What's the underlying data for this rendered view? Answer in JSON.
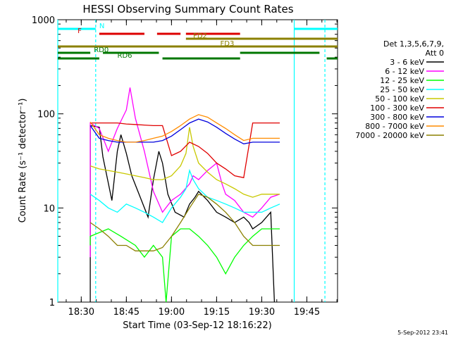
{
  "chart_data": {
    "type": "line",
    "title": "HESSI Observing Summary Count Rates",
    "xlabel": "Start Time (03-Sep-12 18:16:22)",
    "ylabel": "Count Rate (s⁻¹ detector⁻¹)",
    "yscale": "log",
    "ylim": [
      1,
      1000
    ],
    "xlim_minutes": [
      18.37,
      19.92
    ],
    "x_ticks": [
      "18:30",
      "18:45",
      "19:00",
      "19:15",
      "19:30",
      "19:45"
    ],
    "y_ticks": [
      "1",
      "10",
      "100",
      "1000"
    ],
    "footer_date": "5-Sep-2012 23:41",
    "legend": {
      "header": [
        "Det 1,3,5,6,7,9,",
        "Att 0"
      ],
      "placement": "right"
    },
    "series": [
      {
        "name": "3 - 6 keV",
        "color": "#000000",
        "points": [
          [
            18.55,
            1
          ],
          [
            18.55,
            75
          ],
          [
            18.6,
            72
          ],
          [
            18.62,
            35
          ],
          [
            18.67,
            12
          ],
          [
            18.7,
            40
          ],
          [
            18.72,
            60
          ],
          [
            18.75,
            38
          ],
          [
            18.78,
            22
          ],
          [
            18.82,
            14
          ],
          [
            18.87,
            8
          ],
          [
            18.9,
            20
          ],
          [
            18.93,
            40
          ],
          [
            18.95,
            30
          ],
          [
            18.98,
            14
          ],
          [
            19.02,
            9
          ],
          [
            19.07,
            8
          ],
          [
            19.1,
            11
          ],
          [
            19.13,
            13
          ],
          [
            19.15,
            15
          ],
          [
            19.2,
            12
          ],
          [
            19.25,
            9
          ],
          [
            19.3,
            8
          ],
          [
            19.35,
            7
          ],
          [
            19.4,
            8
          ],
          [
            19.43,
            7
          ],
          [
            19.45,
            6
          ],
          [
            19.5,
            7
          ],
          [
            19.55,
            9
          ],
          [
            19.57,
            1
          ]
        ]
      },
      {
        "name": "6 - 12 keV",
        "color": "#ff00ff",
        "points": [
          [
            18.55,
            3
          ],
          [
            18.55,
            80
          ],
          [
            18.6,
            70
          ],
          [
            18.65,
            40
          ],
          [
            18.7,
            70
          ],
          [
            18.75,
            110
          ],
          [
            18.77,
            190
          ],
          [
            18.8,
            90
          ],
          [
            18.85,
            40
          ],
          [
            18.9,
            15
          ],
          [
            18.95,
            9
          ],
          [
            19.0,
            12
          ],
          [
            19.05,
            14
          ],
          [
            19.1,
            18
          ],
          [
            19.12,
            22
          ],
          [
            19.15,
            20
          ],
          [
            19.2,
            25
          ],
          [
            19.25,
            30
          ],
          [
            19.28,
            18
          ],
          [
            19.3,
            14
          ],
          [
            19.35,
            12
          ],
          [
            19.4,
            9
          ],
          [
            19.45,
            8
          ],
          [
            19.5,
            10
          ],
          [
            19.55,
            13
          ],
          [
            19.6,
            14
          ]
        ]
      },
      {
        "name": "12 - 25 keV",
        "color": "#00ff00",
        "points": [
          [
            18.55,
            4
          ],
          [
            18.55,
            5
          ],
          [
            18.65,
            6
          ],
          [
            18.72,
            5
          ],
          [
            18.8,
            4
          ],
          [
            18.85,
            3
          ],
          [
            18.9,
            4
          ],
          [
            18.95,
            3
          ],
          [
            18.97,
            1
          ],
          [
            19.0,
            5
          ],
          [
            19.05,
            6
          ],
          [
            19.1,
            6
          ],
          [
            19.15,
            5
          ],
          [
            19.2,
            4
          ],
          [
            19.25,
            3
          ],
          [
            19.3,
            2
          ],
          [
            19.35,
            3
          ],
          [
            19.4,
            4
          ],
          [
            19.45,
            5
          ],
          [
            19.5,
            6
          ],
          [
            19.55,
            6
          ],
          [
            19.6,
            6
          ]
        ]
      },
      {
        "name": "25 - 50 keV",
        "color": "#00ffff",
        "points": [
          [
            18.55,
            14
          ],
          [
            18.6,
            12
          ],
          [
            18.65,
            10
          ],
          [
            18.7,
            9
          ],
          [
            18.75,
            11
          ],
          [
            18.8,
            10
          ],
          [
            18.85,
            9
          ],
          [
            18.9,
            8
          ],
          [
            18.95,
            7
          ],
          [
            19.0,
            10
          ],
          [
            19.05,
            13
          ],
          [
            19.08,
            16
          ],
          [
            19.1,
            25
          ],
          [
            19.12,
            20
          ],
          [
            19.15,
            16
          ],
          [
            19.2,
            13
          ],
          [
            19.25,
            12
          ],
          [
            19.3,
            11
          ],
          [
            19.35,
            10
          ],
          [
            19.4,
            9
          ],
          [
            19.45,
            9
          ],
          [
            19.5,
            9
          ],
          [
            19.55,
            10
          ],
          [
            19.6,
            11
          ]
        ]
      },
      {
        "name": "50 - 100 keV",
        "color": "#c8c800",
        "points": [
          [
            18.55,
            28
          ],
          [
            18.6,
            26
          ],
          [
            18.65,
            25
          ],
          [
            18.7,
            24
          ],
          [
            18.75,
            23
          ],
          [
            18.8,
            22
          ],
          [
            18.85,
            21
          ],
          [
            18.9,
            20
          ],
          [
            18.95,
            20
          ],
          [
            19.0,
            22
          ],
          [
            19.05,
            28
          ],
          [
            19.08,
            38
          ],
          [
            19.1,
            72
          ],
          [
            19.12,
            45
          ],
          [
            19.15,
            30
          ],
          [
            19.2,
            24
          ],
          [
            19.25,
            20
          ],
          [
            19.3,
            18
          ],
          [
            19.35,
            16
          ],
          [
            19.4,
            14
          ],
          [
            19.45,
            13
          ],
          [
            19.5,
            14
          ],
          [
            19.55,
            14
          ],
          [
            19.6,
            14
          ]
        ]
      },
      {
        "name": "100 - 300 keV",
        "color": "#e00000",
        "points": [
          [
            18.55,
            80
          ],
          [
            18.6,
            80
          ],
          [
            18.65,
            80
          ],
          [
            18.7,
            80
          ],
          [
            18.75,
            78
          ],
          [
            18.8,
            77
          ],
          [
            18.85,
            76
          ],
          [
            18.9,
            75
          ],
          [
            18.95,
            75
          ],
          [
            19.0,
            36
          ],
          [
            19.05,
            40
          ],
          [
            19.1,
            50
          ],
          [
            19.15,
            45
          ],
          [
            19.2,
            38
          ],
          [
            19.25,
            30
          ],
          [
            19.3,
            26
          ],
          [
            19.35,
            22
          ],
          [
            19.4,
            21
          ],
          [
            19.45,
            80
          ],
          [
            19.5,
            80
          ],
          [
            19.55,
            80
          ],
          [
            19.6,
            80
          ]
        ]
      },
      {
        "name": "300 - 800 keV",
        "color": "#0000dd",
        "points": [
          [
            18.55,
            75
          ],
          [
            18.6,
            55
          ],
          [
            18.65,
            52
          ],
          [
            18.7,
            50
          ],
          [
            18.75,
            50
          ],
          [
            18.8,
            50
          ],
          [
            18.85,
            50
          ],
          [
            18.9,
            50
          ],
          [
            18.95,
            52
          ],
          [
            19.0,
            58
          ],
          [
            19.05,
            68
          ],
          [
            19.1,
            80
          ],
          [
            19.15,
            88
          ],
          [
            19.2,
            82
          ],
          [
            19.25,
            72
          ],
          [
            19.3,
            62
          ],
          [
            19.35,
            54
          ],
          [
            19.4,
            48
          ],
          [
            19.45,
            50
          ],
          [
            19.5,
            50
          ],
          [
            19.55,
            50
          ],
          [
            19.6,
            50
          ]
        ]
      },
      {
        "name": "800 - 7000 keV",
        "color": "#ff8c00",
        "points": [
          [
            18.55,
            82
          ],
          [
            18.6,
            60
          ],
          [
            18.65,
            55
          ],
          [
            18.7,
            52
          ],
          [
            18.75,
            50
          ],
          [
            18.8,
            50
          ],
          [
            18.85,
            52
          ],
          [
            18.9,
            55
          ],
          [
            18.95,
            58
          ],
          [
            19.0,
            65
          ],
          [
            19.05,
            75
          ],
          [
            19.1,
            88
          ],
          [
            19.15,
            98
          ],
          [
            19.2,
            92
          ],
          [
            19.25,
            80
          ],
          [
            19.3,
            70
          ],
          [
            19.35,
            60
          ],
          [
            19.4,
            52
          ],
          [
            19.45,
            55
          ],
          [
            19.5,
            55
          ],
          [
            19.55,
            55
          ],
          [
            19.6,
            55
          ]
        ]
      },
      {
        "name": "7000 - 20000 keV",
        "color": "#8b8000",
        "points": [
          [
            18.55,
            7
          ],
          [
            18.6,
            6
          ],
          [
            18.65,
            5
          ],
          [
            18.7,
            4
          ],
          [
            18.75,
            4
          ],
          [
            18.8,
            3.5
          ],
          [
            18.85,
            3.5
          ],
          [
            18.9,
            3.5
          ],
          [
            18.95,
            3.8
          ],
          [
            19.0,
            5
          ],
          [
            19.05,
            7
          ],
          [
            19.1,
            10
          ],
          [
            19.15,
            14
          ],
          [
            19.2,
            13
          ],
          [
            19.25,
            11
          ],
          [
            19.3,
            9
          ],
          [
            19.35,
            7
          ],
          [
            19.4,
            5
          ],
          [
            19.45,
            4
          ],
          [
            19.5,
            4
          ],
          [
            19.55,
            4
          ],
          [
            19.6,
            4
          ]
        ]
      }
    ],
    "cyan_vlines": [
      {
        "x": 18.37,
        "style": "solid"
      },
      {
        "x": 18.58,
        "style": "dashed"
      },
      {
        "x": 19.68,
        "style": "solid"
      },
      {
        "x": 19.85,
        "style": "dashed"
      }
    ],
    "flag_bars": [
      {
        "label": "N",
        "color": "#00ffff",
        "level": 0,
        "segments": [
          [
            18.37,
            18.58
          ],
          [
            19.68,
            19.92
          ]
        ],
        "label_at": 18.6
      },
      {
        "label": "F",
        "color": "#dd0000",
        "level": 1,
        "segments": [
          [
            18.6,
            18.85
          ],
          [
            18.92,
            19.05
          ],
          [
            19.08,
            19.38
          ]
        ],
        "label_at": 18.48
      },
      {
        "label": "FD2",
        "color": "#8b8000",
        "level": 2,
        "segments": [
          [
            19.08,
            19.92
          ]
        ],
        "label_at": 19.12
      },
      {
        "label": "FD3",
        "color": "#8b8000",
        "level": 3,
        "segments": [
          [
            18.37,
            19.92
          ]
        ],
        "label_at": 19.27
      },
      {
        "label": "RD0",
        "color": "#007700",
        "level": 4,
        "segments": [
          [
            18.37,
            18.55
          ],
          [
            18.62,
            18.93
          ],
          [
            19.38,
            19.82
          ]
        ],
        "label_at": 18.57
      },
      {
        "label": "RD6",
        "color": "#007700",
        "level": 5,
        "segments": [
          [
            18.37,
            18.6
          ],
          [
            18.95,
            19.38
          ],
          [
            19.86,
            19.92
          ]
        ],
        "label_at": 18.7
      }
    ]
  }
}
